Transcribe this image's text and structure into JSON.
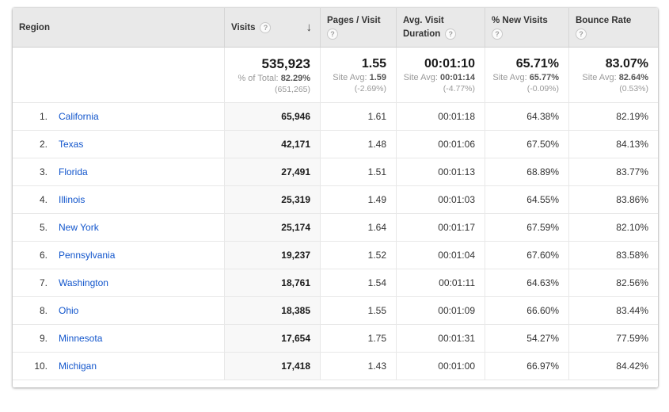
{
  "colors": {
    "link_blue": "#1155cc",
    "header_bg": "#e9e9e9",
    "sorted_column_bg": "#f8f8f8",
    "text_dark": "#333333",
    "text_gray": "#999999"
  },
  "table": {
    "columns": {
      "region": "Region",
      "visits": "Visits",
      "pages_per_visit": "Pages / Visit",
      "avg_visit_duration_line1": "Avg. Visit",
      "avg_visit_duration_line2": "Duration",
      "pct_new_visits": "% New Visits",
      "bounce_rate": "Bounce Rate"
    },
    "icons": {
      "help": "?",
      "sort_descending": "↓"
    },
    "summary": {
      "visits": {
        "value": "535,923",
        "label": "% of Total:",
        "avg": "82.29%",
        "paren": "(651,265)"
      },
      "pages": {
        "value": "1.55",
        "label": "Site Avg:",
        "avg": "1.59",
        "paren": "(-2.69%)"
      },
      "duration": {
        "value": "00:01:10",
        "label": "Site Avg:",
        "avg": "00:01:14",
        "paren": "(-4.77%)"
      },
      "new_visits": {
        "value": "65.71%",
        "label": "Site Avg:",
        "avg": "65.77%",
        "paren": "(-0.09%)"
      },
      "bounce": {
        "value": "83.07%",
        "label": "Site Avg:",
        "avg": "82.64%",
        "paren": "(0.53%)"
      }
    },
    "rows": [
      {
        "rank": "1.",
        "region": "California",
        "visits": "65,946",
        "pages": "1.61",
        "duration": "00:01:18",
        "new_visits": "64.38%",
        "bounce": "82.19%"
      },
      {
        "rank": "2.",
        "region": "Texas",
        "visits": "42,171",
        "pages": "1.48",
        "duration": "00:01:06",
        "new_visits": "67.50%",
        "bounce": "84.13%"
      },
      {
        "rank": "3.",
        "region": "Florida",
        "visits": "27,491",
        "pages": "1.51",
        "duration": "00:01:13",
        "new_visits": "68.89%",
        "bounce": "83.77%"
      },
      {
        "rank": "4.",
        "region": "Illinois",
        "visits": "25,319",
        "pages": "1.49",
        "duration": "00:01:03",
        "new_visits": "64.55%",
        "bounce": "83.86%"
      },
      {
        "rank": "5.",
        "region": "New York",
        "visits": "25,174",
        "pages": "1.64",
        "duration": "00:01:17",
        "new_visits": "67.59%",
        "bounce": "82.10%"
      },
      {
        "rank": "6.",
        "region": "Pennsylvania",
        "visits": "19,237",
        "pages": "1.52",
        "duration": "00:01:04",
        "new_visits": "67.60%",
        "bounce": "83.58%"
      },
      {
        "rank": "7.",
        "region": "Washington",
        "visits": "18,761",
        "pages": "1.54",
        "duration": "00:01:11",
        "new_visits": "64.63%",
        "bounce": "82.56%"
      },
      {
        "rank": "8.",
        "region": "Ohio",
        "visits": "18,385",
        "pages": "1.55",
        "duration": "00:01:09",
        "new_visits": "66.60%",
        "bounce": "83.44%"
      },
      {
        "rank": "9.",
        "region": "Minnesota",
        "visits": "17,654",
        "pages": "1.75",
        "duration": "00:01:31",
        "new_visits": "54.27%",
        "bounce": "77.59%"
      },
      {
        "rank": "10.",
        "region": "Michigan",
        "visits": "17,418",
        "pages": "1.43",
        "duration": "00:01:00",
        "new_visits": "66.97%",
        "bounce": "84.42%"
      }
    ]
  }
}
